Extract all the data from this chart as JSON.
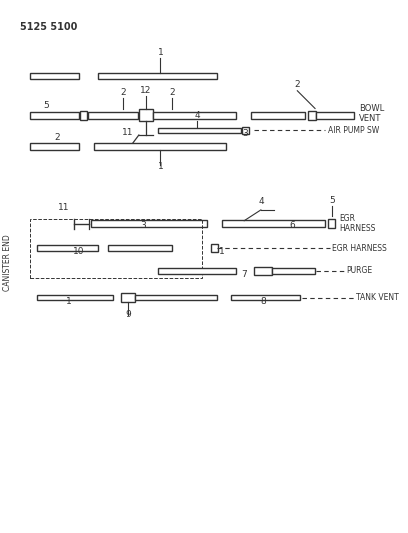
{
  "title": "5125 5100",
  "bg_color": "#ffffff",
  "line_color": "#333333",
  "text_color": "#333333",
  "side_label": "CANISTER END",
  "annotations": {
    "bowl_vent": "BOWL\nVENT",
    "air_pump_sw": "AIR PUMP SW",
    "egr_harness1": "EGR\nHARNESS",
    "egr_harness2": "EGR HARNESS",
    "purge": "PURGE",
    "tank_vent": "TANK VENT"
  }
}
